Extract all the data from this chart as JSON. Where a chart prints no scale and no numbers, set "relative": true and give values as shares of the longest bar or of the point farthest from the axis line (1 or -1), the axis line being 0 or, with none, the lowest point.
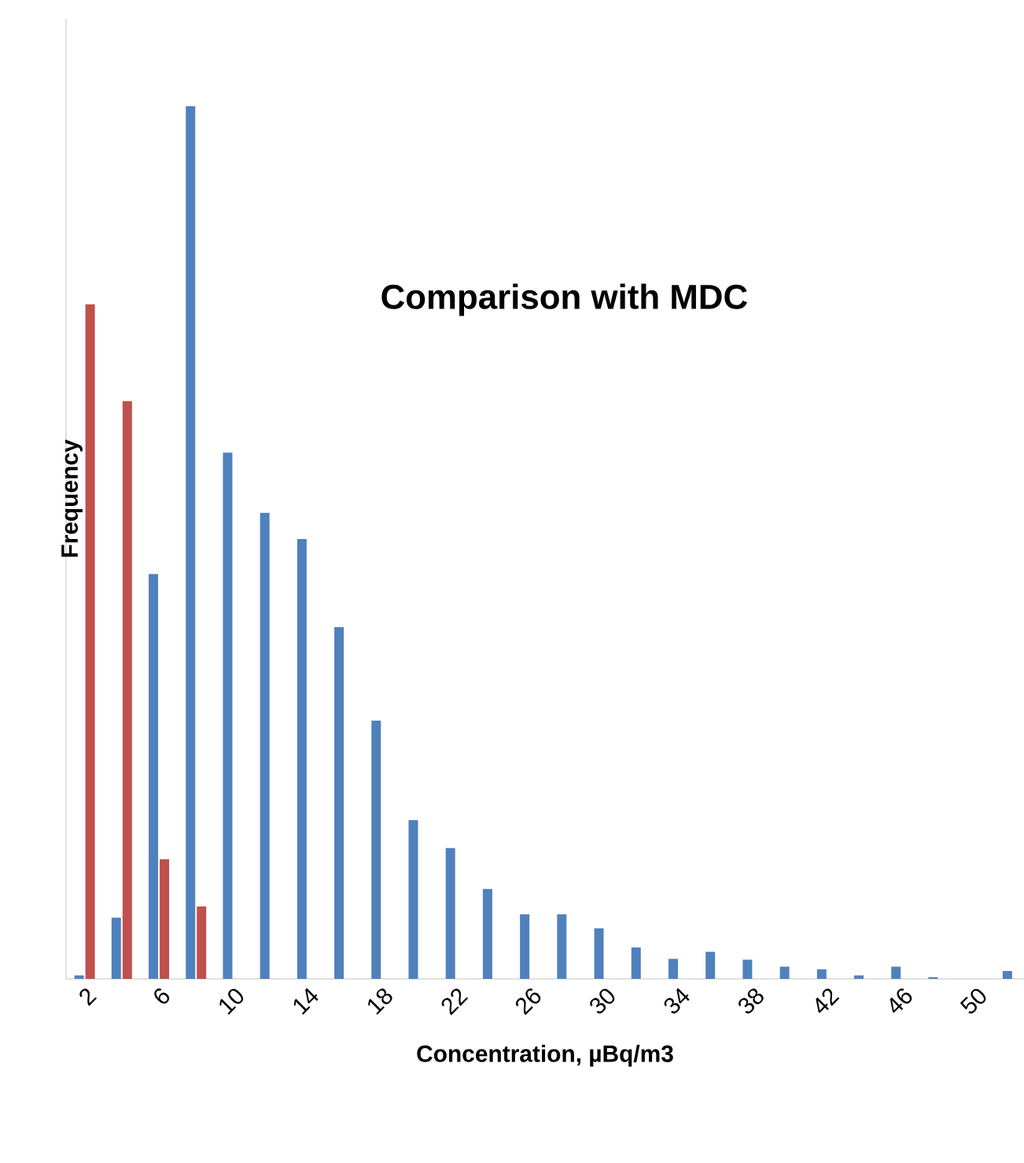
{
  "chart_data": {
    "type": "bar",
    "title": "Comparison with MDC",
    "xlabel": "Concentration, µBq/m3",
    "ylabel": "Frequency",
    "relative": true,
    "categories": [
      "2",
      null,
      "6",
      null,
      "10",
      null,
      "14",
      null,
      "18",
      null,
      "22",
      null,
      "26",
      null,
      "30",
      null,
      "34",
      null,
      "38",
      null,
      "42",
      null,
      "46",
      null,
      "50",
      null
    ],
    "series": [
      {
        "color": "#4f81bd",
        "values": [
          0.004,
          0.07,
          0.464,
          1,
          0.603,
          0.534,
          0.504,
          0.403,
          0.296,
          0.182,
          0.15,
          0.103,
          0.074,
          0.074,
          0.058,
          0.036,
          0.023,
          0.031,
          0.022,
          0.014,
          0.011,
          0.004,
          0.014,
          0.002,
          null,
          0.009
        ]
      },
      {
        "color": "#c0504d",
        "values": [
          0.773,
          0.662,
          0.137,
          0.083,
          null,
          null,
          null,
          null,
          null,
          null,
          null,
          null,
          null,
          null,
          null,
          null,
          null,
          null,
          null,
          null,
          null,
          null,
          null,
          null,
          null,
          null
        ]
      }
    ]
  }
}
